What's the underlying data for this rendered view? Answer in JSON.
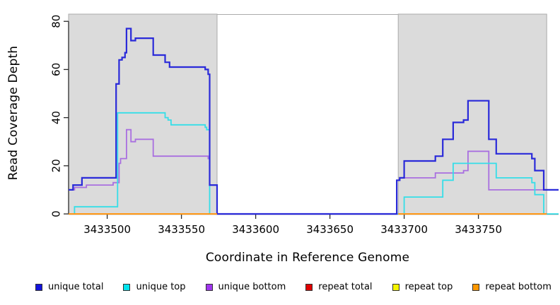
{
  "chart_data": {
    "type": "line",
    "subtype": "step-coverage",
    "title": "",
    "xlabel": "Coordinate in Reference Genome",
    "ylabel": "Read Coverage Depth",
    "xlim": [
      3433474,
      3433804
    ],
    "ylim": [
      0,
      83
    ],
    "grid": false,
    "legend_position": "bottom",
    "x_ticks": [
      {
        "value": 3433500,
        "label": "3433500"
      },
      {
        "value": 3433550,
        "label": "3433550"
      },
      {
        "value": 3433600,
        "label": "3433600"
      },
      {
        "value": 3433650,
        "label": "3433650"
      },
      {
        "value": 3433700,
        "label": "3433700"
      },
      {
        "value": 3433750,
        "label": "3433750"
      }
    ],
    "y_ticks": [
      {
        "value": 0,
        "label": "0"
      },
      {
        "value": 20,
        "label": "20"
      },
      {
        "value": 40,
        "label": "40"
      },
      {
        "value": 60,
        "label": "60"
      },
      {
        "value": 80,
        "label": "80"
      }
    ],
    "shaded_regions": [
      {
        "start": 3433474,
        "end": 3433574
      },
      {
        "start": 3433696,
        "end": 3433796
      }
    ],
    "region_fill": "#DBDBDB",
    "region_border": "#ABABAB",
    "axis_color": "#2b2b2b",
    "series": [
      {
        "name": "repeat total",
        "key": "repeat-total",
        "color": "#DD0000",
        "width": 2,
        "segments": [
          [
            [
              3433474,
              0
            ],
            [
              3433574,
              0
            ]
          ],
          [
            [
              3433696,
              0
            ],
            [
              3433796,
              0
            ]
          ]
        ]
      },
      {
        "name": "repeat top",
        "key": "repeat-top",
        "color": "#EEEE00",
        "width": 2,
        "segments": [
          [
            [
              3433474,
              0
            ],
            [
              3433574,
              0
            ]
          ],
          [
            [
              3433696,
              0
            ],
            [
              3433796,
              0
            ]
          ]
        ]
      },
      {
        "name": "unique bottom",
        "key": "unique-bottom",
        "color": "#A96FE0",
        "width": 1.8,
        "segments": [
          [
            [
              3433474,
              10
            ],
            [
              3433478,
              11
            ],
            [
              3433486,
              12
            ],
            [
              3433504,
              13
            ],
            [
              3433508,
              21
            ],
            [
              3433509,
              23
            ],
            [
              3433513,
              35
            ],
            [
              3433516,
              30
            ],
            [
              3433519,
              31
            ],
            [
              3433531,
              24
            ],
            [
              3433568,
              23
            ],
            [
              3433569,
              12
            ],
            [
              3433574,
              0
            ],
            [
              3433695,
              14
            ],
            [
              3433697,
              15
            ],
            [
              3433721,
              17
            ],
            [
              3433740,
              18
            ],
            [
              3433743,
              26
            ],
            [
              3433757,
              10
            ],
            [
              3433804,
              10
            ]
          ]
        ]
      },
      {
        "name": "unique top",
        "key": "unique-top",
        "color": "#35DEE8",
        "width": 1.8,
        "segments": [
          [
            [
              3433474,
              0
            ],
            [
              3433478,
              3
            ],
            [
              3433507,
              42
            ],
            [
              3433539,
              40
            ],
            [
              3433541,
              39
            ],
            [
              3433543,
              37
            ],
            [
              3433566,
              36
            ],
            [
              3433567,
              35
            ],
            [
              3433569,
              0
            ],
            [
              3433700,
              7
            ],
            [
              3433726,
              14
            ],
            [
              3433733,
              21
            ],
            [
              3433762,
              15
            ],
            [
              3433786,
              13
            ],
            [
              3433788,
              8
            ],
            [
              3433794,
              0
            ],
            [
              3433804,
              0
            ]
          ]
        ]
      },
      {
        "name": "unique total",
        "key": "unique-total",
        "color": "#2A2AD9",
        "width": 2.2,
        "segments": [
          [
            [
              3433474,
              10
            ],
            [
              3433477,
              12
            ],
            [
              3433483,
              15
            ],
            [
              3433506,
              54
            ],
            [
              3433508,
              64
            ],
            [
              3433510,
              65
            ],
            [
              3433512,
              67
            ],
            [
              3433513,
              77
            ],
            [
              3433516,
              72
            ],
            [
              3433519,
              73
            ],
            [
              3433531,
              66
            ],
            [
              3433539,
              63
            ],
            [
              3433542,
              61
            ],
            [
              3433566,
              60
            ],
            [
              3433568,
              58
            ],
            [
              3433569,
              12
            ],
            [
              3433574,
              0
            ],
            [
              3433695,
              14
            ],
            [
              3433697,
              15
            ],
            [
              3433700,
              22
            ],
            [
              3433721,
              24
            ],
            [
              3433726,
              31
            ],
            [
              3433733,
              38
            ],
            [
              3433740,
              39
            ],
            [
              3433743,
              47
            ],
            [
              3433757,
              31
            ],
            [
              3433762,
              25
            ],
            [
              3433786,
              23
            ],
            [
              3433788,
              18
            ],
            [
              3433794,
              10
            ],
            [
              3433804,
              10
            ]
          ]
        ]
      },
      {
        "name": "repeat bottom",
        "key": "repeat-bottom",
        "color": "#FF9714",
        "width": 2,
        "segments": [
          [
            [
              3433474,
              0
            ],
            [
              3433574,
              0
            ]
          ],
          [
            [
              3433696,
              0
            ],
            [
              3433796,
              0
            ]
          ]
        ]
      }
    ],
    "legend": [
      {
        "label": "unique total",
        "color": "#1414DD"
      },
      {
        "label": "unique top",
        "color": "#00E4EE"
      },
      {
        "label": "unique bottom",
        "color": "#A036EE"
      },
      {
        "label": "repeat total",
        "color": "#E00000"
      },
      {
        "label": "repeat top",
        "color": "#F5F500"
      },
      {
        "label": "repeat bottom",
        "color": "#FF9800"
      }
    ]
  }
}
